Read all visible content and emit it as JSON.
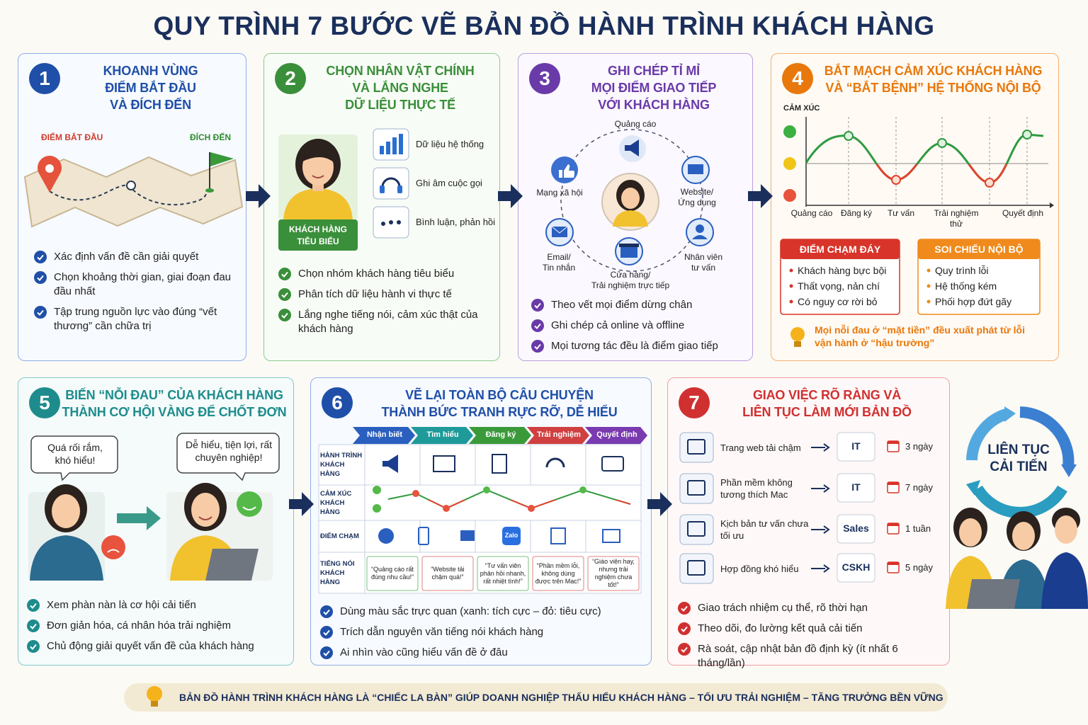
{
  "title": "QUY TRÌNH 7 BƯỚC VẼ BẢN ĐỒ HÀNH TRÌNH KHÁCH HÀNG",
  "steps": [
    {
      "number": 1,
      "title": [
        "KHOANH VÙNG",
        "ĐIỂM BẮT ĐẦU",
        "VÀ ĐÍCH ĐẾN"
      ],
      "start_label": "ĐIỂM BẮT ĐẦU",
      "end_label": "ĐÍCH ĐẾN",
      "bullets": [
        "Xác định vấn đề cần giải quyết",
        "Chọn khoảng thời gian, giai đoạn đau đầu nhất",
        "Tập trung nguồn lực vào đúng “vết thương” cần chữa trị"
      ]
    },
    {
      "number": 2,
      "title": [
        "CHỌN NHÂN VẬT CHÍNH",
        "VÀ LẮNG NGHE",
        "DỮ LIỆU THỰC TẾ"
      ],
      "persona_label": "KHÁCH HÀNG TIÊU BIỂU",
      "sources": [
        "Dữ liệu hệ thống",
        "Ghi âm cuộc gọi",
        "Bình luận, phản hồi"
      ],
      "bullets": [
        "Chọn nhóm khách hàng tiêu biểu",
        "Phân tích dữ liệu hành vi thực tế",
        "Lắng nghe tiếng nói, cảm xúc thật của khách hàng"
      ]
    },
    {
      "number": 3,
      "title": [
        "GHI CHÉP TỈ MỈ",
        "MỌI ĐIỂM GIAO TIẾP",
        "VỚI KHÁCH HÀNG"
      ],
      "channels": [
        [
          "Quảng cáo"
        ],
        [
          "Mạng xã hội"
        ],
        [
          "Website/",
          "Ứng dụng"
        ],
        [
          "Email/",
          "Tin nhắn"
        ],
        [
          "Cửa hàng/",
          "Trải nghiệm trực tiếp"
        ],
        [
          "Nhân viên",
          "tư vấn"
        ]
      ],
      "bullets": [
        "Theo vết mọi điểm dừng chân",
        "Ghi chép cả online và offline",
        "Mọi tương tác đều là điểm giao tiếp"
      ]
    },
    {
      "number": 4,
      "title": [
        "BẮT MẠCH CẢM XÚC KHÁCH HÀNG",
        "VÀ “BẮT BỆNH” HỆ THỐNG NỘI BỘ"
      ],
      "emotion_axis": "CẢM XÚC",
      "stages": [
        "Quảng cáo",
        "Đăng ký",
        "Tư vấn",
        "Trải nghiệm thử",
        "Quyết định"
      ],
      "panels": [
        {
          "title": "ĐIỂM CHẠM ĐÁY",
          "items": [
            "Khách hàng bực bội",
            "Thất vọng, nản chí",
            "Có nguy cơ rời bỏ"
          ]
        },
        {
          "title": "SOI CHIẾU NỘI BỘ",
          "items": [
            "Quy trình lỗi",
            "Hệ thống kém",
            "Phối hợp đứt gãy"
          ]
        }
      ],
      "note": "Mọi nỗi đau ở “mặt tiền” đều xuất phát từ lỗi vận hành ở “hậu trường”"
    },
    {
      "number": 5,
      "title": [
        "BIẾN “NỖI ĐAU” CỦA KHÁCH HÀNG",
        "THÀNH CƠ HỘI VÀNG ĐỂ CHỐT ĐƠN"
      ],
      "bubbles": [
        "Quá rối rắm, khó hiểu!",
        "Dễ hiểu, tiện lợi, rất chuyên nghiệp!"
      ],
      "bullets": [
        "Xem phàn nàn là cơ hội cải tiến",
        "Đơn giản hóa, cá nhân hóa trải nghiệm",
        "Chủ động giải quyết vấn đề của khách hàng"
      ]
    },
    {
      "number": 6,
      "title": [
        "VẼ LẠI TOÀN BỘ CÂU CHUYỆN",
        "THÀNH BỨC TRANH RỰC RỠ, DỄ HIỂU"
      ],
      "stages": [
        "Nhận biết",
        "Tìm hiểu",
        "Đăng ký",
        "Trải nghiệm",
        "Quyết định"
      ],
      "rows": [
        "HÀNH TRÌNH KHÁCH HÀNG",
        "CẢM XÚC KHÁCH HÀNG",
        "ĐIỂM CHẠM",
        "TIẾNG NÓI KHÁCH HÀNG"
      ],
      "touchpoint_label": "Zalo",
      "quotes": [
        "“Quảng cáo rất đúng nhu cầu!”",
        "“Website tải chậm quá!”",
        "“Tư vấn viên phản hồi nhanh, rất nhiệt tình!”",
        "“Phần mềm lỗi, không dùng được trên Mac!”",
        "“Giáo viên hay, nhưng trải nghiệm chưa tốt!”"
      ],
      "bullets": [
        "Dùng màu sắc trực quan (xanh: tích cực – đỏ: tiêu cực)",
        "Trích dẫn nguyên văn tiếng nói khách hàng",
        "Ai nhìn vào cũng hiểu vấn đề ở đâu"
      ]
    },
    {
      "number": 7,
      "title": [
        "GIAO VIỆC RÕ RÀNG VÀ",
        "LIÊN TỤC LÀM MỚI BẢN ĐỒ"
      ],
      "tasks": [
        {
          "issue": "Trang web tải chậm",
          "owner": "IT",
          "time": "3 ngày"
        },
        {
          "issue": "Phần mềm không tương thích Mac",
          "owner": "IT",
          "time": "7 ngày"
        },
        {
          "issue": "Kịch bản tư vấn chưa tối ưu",
          "owner": "Sales",
          "time": "1 tuần"
        },
        {
          "issue": "Hợp đồng khó hiểu",
          "owner": "CSKH",
          "time": "5 ngày"
        }
      ],
      "cycle_label": "LIÊN TỤC CẢI TIẾN",
      "bullets": [
        "Giao trách nhiệm cụ thể, rõ thời hạn",
        "Theo dõi, đo lường kết quả cải tiến",
        "Rà soát, cập nhật bản đồ định kỳ (ít nhất 6 tháng/lần)"
      ]
    }
  ],
  "footer": "BẢN ĐỒ HÀNH TRÌNH KHÁCH HÀNG LÀ “CHIẾC LA BÀN” GIÚP DOANH NGHIỆP THẤU HIỂU KHÁCH HÀNG – TỐI ƯU TRẢI NGHIỆM – TĂNG TRƯỞNG BỀN VỮNG"
}
